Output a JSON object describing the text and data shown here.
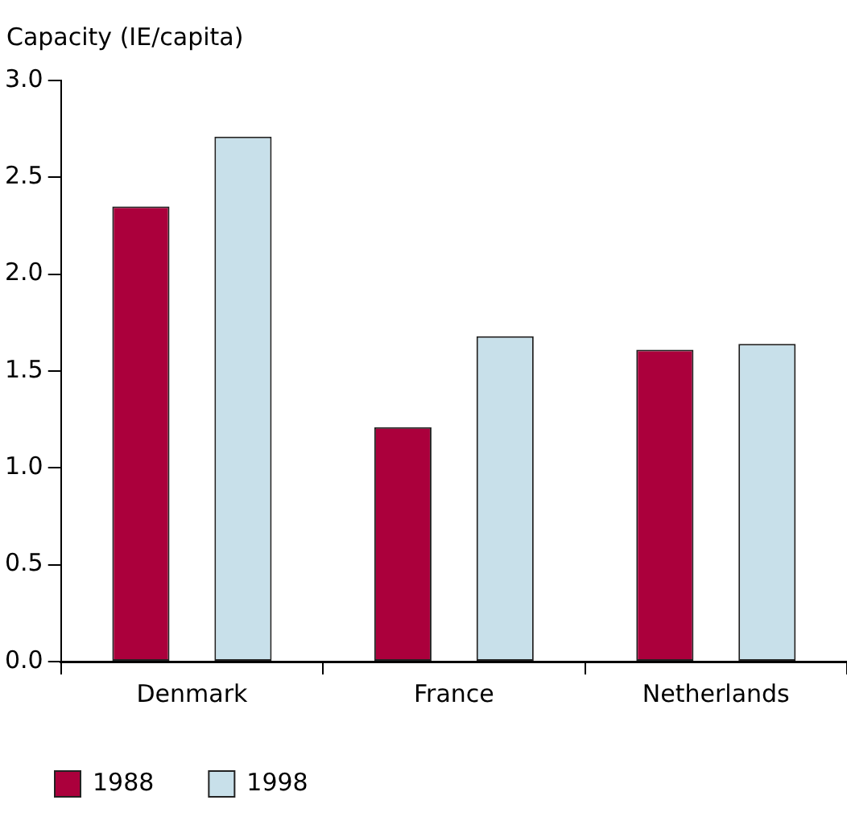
{
  "chart_data": {
    "type": "bar",
    "ylabel": "Capacity (IE/capita)",
    "categories": [
      "Denmark",
      "France",
      "Netherlands"
    ],
    "series": [
      {
        "name": "1988",
        "color": "#ab003c",
        "values": [
          2.35,
          1.21,
          1.61
        ]
      },
      {
        "name": "1998",
        "color": "#c8e0ea",
        "values": [
          2.71,
          1.68,
          1.64
        ]
      }
    ],
    "ylim": [
      0,
      3
    ],
    "yticks": [
      {
        "value": 0,
        "label": "0.0"
      },
      {
        "value": 0.5,
        "label": "0.5"
      },
      {
        "value": 1,
        "label": "1.0"
      },
      {
        "value": 1.5,
        "label": "1.5"
      },
      {
        "value": 2,
        "label": "2.0"
      },
      {
        "value": 2.5,
        "label": "2.5"
      },
      {
        "value": 3,
        "label": "3.0"
      }
    ],
    "grid": false,
    "legend": "bottom left"
  }
}
